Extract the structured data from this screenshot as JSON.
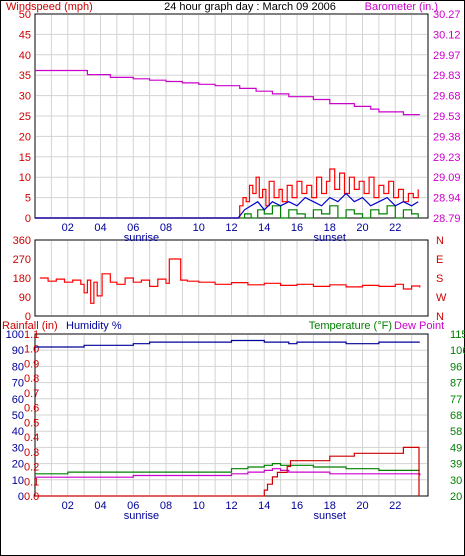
{
  "colors": {
    "frame": "#000000",
    "plot_bg": "#ffffff",
    "grid": "#d3d3d3",
    "wind_red": "#ff0000",
    "baro_magenta": "#cc00cc",
    "gust_green": "#008000",
    "avg_blue": "#0000cc",
    "humidity_blue": "#000099",
    "temp_green": "#008000",
    "rain_red": "#cc0000"
  },
  "chart_data": [
    {
      "id": "wind-baro",
      "type": "line",
      "title": "24 hour graph day : March 09 2006",
      "ylabel_left": "Windspeed (mph)",
      "ylabel_right": "Barometer (in.)",
      "x_ticks": [
        "02",
        "04",
        "06",
        "08",
        "10",
        "12",
        "14",
        "16",
        "18",
        "20",
        "22"
      ],
      "x_tick_hours": [
        2,
        4,
        6,
        8,
        10,
        12,
        14,
        16,
        18,
        20,
        22
      ],
      "sun_labels": [
        {
          "label": "sunrise",
          "hour": 6.5
        },
        {
          "label": "sunset",
          "hour": 18
        }
      ],
      "left_ticks": [
        "0",
        "5",
        "10",
        "15",
        "20",
        "25",
        "30",
        "35",
        "40",
        "45",
        "50"
      ],
      "right_ticks": [
        "28.79",
        "28.94",
        "29.09",
        "29.23",
        "29.38",
        "29.53",
        "29.68",
        "29.83",
        "29.97",
        "30.12",
        "30.27"
      ],
      "ylim_left": [
        0,
        50
      ],
      "ylim_right": [
        28.79,
        30.27
      ],
      "barometer": {
        "x": [
          0,
          2.8,
          3.2,
          4.0,
          4.6,
          5.5,
          6.0,
          6.5,
          7.0,
          8.0,
          9.0,
          10.0,
          11.0,
          12.5,
          13.5,
          14.5,
          15.5,
          17.0,
          18.0,
          19.5,
          20.5,
          21.0,
          22.5,
          23.5
        ],
        "y": [
          29.86,
          29.86,
          29.83,
          29.83,
          29.81,
          29.81,
          29.8,
          29.8,
          29.79,
          29.78,
          29.77,
          29.76,
          29.75,
          29.73,
          29.71,
          29.69,
          29.67,
          29.65,
          29.62,
          29.6,
          29.58,
          29.56,
          29.54,
          29.54
        ]
      },
      "wind_gust": {
        "x": [
          0,
          12.4,
          12.5,
          12.7,
          12.9,
          13.1,
          13.3,
          13.5,
          13.7,
          13.9,
          14.1,
          14.3,
          14.6,
          14.9,
          15.1,
          15.4,
          15.7,
          16.0,
          16.3,
          16.6,
          16.9,
          17.2,
          17.5,
          17.8,
          18.0,
          18.3,
          18.6,
          18.9,
          19.2,
          19.5,
          19.8,
          20.1,
          20.4,
          20.7,
          21.0,
          21.3,
          21.6,
          21.9,
          22.2,
          22.5,
          22.8,
          23.1,
          23.4
        ],
        "y": [
          0,
          0,
          3,
          5,
          4,
          8,
          6,
          10,
          5,
          7,
          3,
          9,
          5,
          7,
          4,
          8,
          5,
          9,
          6,
          8,
          5,
          10,
          6,
          9,
          12,
          7,
          11,
          6,
          10,
          7,
          9,
          6,
          10,
          5,
          8,
          6,
          9,
          5,
          7,
          4,
          6,
          5,
          7
        ]
      },
      "wind_avg": {
        "x": [
          0,
          12.4,
          12.8,
          13.2,
          13.6,
          14.0,
          14.5,
          15.0,
          15.5,
          16.0,
          16.5,
          17.0,
          17.5,
          18.0,
          18.5,
          19.0,
          19.5,
          20.0,
          20.5,
          21.0,
          21.5,
          22.0,
          22.5,
          23.0,
          23.4
        ],
        "y": [
          0,
          0,
          2,
          3,
          4,
          2,
          4,
          3,
          4,
          3,
          5,
          4,
          3,
          5,
          4,
          6,
          4,
          5,
          3,
          4,
          5,
          3,
          4,
          3,
          4
        ]
      },
      "wind_min": {
        "x": [
          0,
          12.4,
          12.8,
          13.2,
          13.6,
          14.0,
          14.5,
          15.0,
          15.5,
          16.0,
          16.5,
          17.0,
          17.5,
          18.0,
          18.5,
          19.0,
          19.5,
          20.0,
          20.5,
          21.0,
          21.5,
          22.0,
          22.5,
          23.0,
          23.4
        ],
        "y": [
          0,
          0,
          1,
          0,
          2,
          1,
          3,
          0,
          2,
          1,
          0,
          2,
          1,
          3,
          0,
          2,
          1,
          0,
          2,
          1,
          3,
          0,
          2,
          1,
          0
        ]
      }
    },
    {
      "id": "wind-direction",
      "type": "line",
      "left_ticks": [
        "0",
        "90",
        "180",
        "270",
        "360"
      ],
      "right_labels": [
        "N",
        "W",
        "S",
        "E",
        "N"
      ],
      "ylim": [
        0,
        360
      ],
      "direction": {
        "x": [
          0.3,
          0.8,
          1.3,
          1.8,
          2.3,
          2.8,
          3.0,
          3.2,
          3.4,
          3.6,
          3.8,
          4.1,
          4.6,
          5.0,
          5.5,
          6.0,
          6.5,
          7.0,
          7.5,
          8.0,
          8.2,
          8.6,
          8.9,
          9.3,
          10.0,
          11.0,
          12.0,
          13.0,
          14.0,
          15.0,
          16.0,
          17.0,
          18.0,
          19.0,
          20.0,
          21.0,
          22.0,
          22.5,
          23.0,
          23.5
        ],
        "y": [
          180,
          165,
          175,
          160,
          170,
          150,
          110,
          170,
          60,
          160,
          95,
          200,
          160,
          150,
          180,
          160,
          170,
          140,
          175,
          155,
          270,
          270,
          170,
          165,
          160,
          150,
          158,
          148,
          155,
          145,
          150,
          140,
          148,
          138,
          145,
          140,
          150,
          128,
          142,
          135
        ]
      }
    },
    {
      "id": "rain-humidity-temp",
      "type": "line",
      "ylabel_left": "Rainfall (in)",
      "ylabel_humidity": "Humidity %",
      "ylabel_temp": "Temperature (°F)",
      "ylabel_dew": "Dew Point",
      "humidity_ticks": [
        "0",
        "10",
        "20",
        "30",
        "40",
        "50",
        "60",
        "70",
        "80",
        "90",
        "100"
      ],
      "rain_ticks": [
        "0.0",
        "0.1",
        "0.2",
        "0.3",
        "0.4",
        "0.5",
        "0.6",
        "0.7",
        "0.8",
        "0.9",
        "1.0",
        "1.1"
      ],
      "temp_ticks": [
        "20",
        "30",
        "39",
        "49",
        "58",
        "68",
        "77",
        "87",
        "96",
        "106",
        "115"
      ],
      "ylim_humidity": [
        0,
        100
      ],
      "ylim_rain": [
        0,
        1.1
      ],
      "ylim_temp": [
        20,
        115
      ],
      "humidity": {
        "x": [
          0,
          3,
          4,
          6,
          7,
          7.5,
          10,
          12,
          14,
          15,
          15.5,
          16,
          18,
          19,
          20,
          21,
          22,
          23.5
        ],
        "y": [
          92,
          93,
          93,
          94,
          95,
          95,
          95,
          96,
          95,
          95,
          94,
          95,
          95,
          94,
          94,
          95,
          95,
          95
        ]
      },
      "rainfall": {
        "x": [
          0,
          13.8,
          14.0,
          14.2,
          14.5,
          14.8,
          15.2,
          15.4,
          15.6,
          16.0,
          17.0,
          18.0,
          19.0,
          19.5,
          20.0,
          21.0,
          22.0,
          22.5,
          23.4,
          23.45
        ],
        "y": [
          0,
          0,
          0.04,
          0.08,
          0.13,
          0.16,
          0.16,
          0.2,
          0.24,
          0.24,
          0.24,
          0.27,
          0.27,
          0.29,
          0.29,
          0.29,
          0.29,
          0.33,
          0.33,
          0.0
        ]
      },
      "temperature": {
        "x": [
          0,
          2,
          4,
          6,
          8,
          10,
          12,
          13,
          14,
          14.5,
          15,
          15.5,
          16,
          17,
          18,
          19,
          20,
          21,
          22,
          23.5
        ],
        "y": [
          33,
          34,
          34,
          34,
          34,
          34,
          36,
          37,
          38,
          39,
          38,
          38,
          38,
          37,
          37,
          36,
          36,
          35,
          35,
          35
        ]
      },
      "dew_point": {
        "x": [
          0,
          2,
          4,
          6,
          8,
          10,
          12,
          13,
          14,
          14.5,
          15,
          15.5,
          16,
          17,
          18,
          19,
          20,
          21,
          22,
          23.5
        ],
        "y": [
          31,
          31,
          31,
          32,
          32,
          32,
          33,
          34,
          35,
          36,
          35,
          34,
          34,
          34,
          33,
          33,
          33,
          33,
          33,
          32
        ]
      }
    }
  ]
}
